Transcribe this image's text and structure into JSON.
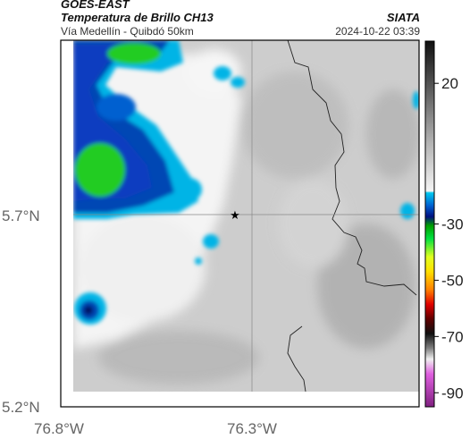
{
  "header": {
    "satellite": "GOES-EAST",
    "product": "Temperatura de Brillo CH13",
    "route": "Vía Medellín - Quibdó 50km",
    "agency": "SIATA",
    "timestamp": "2024-10-22 03:39"
  },
  "map": {
    "longitude_ticks": [
      "76.8°W",
      "76.3°W"
    ],
    "latitude_ticks": [
      "5.7°N",
      "5.2°N"
    ],
    "marker_icon": "star-icon",
    "colors": {
      "cloud_white": "#f4f4f4",
      "land_gray": "#c8c8c8",
      "cyan": "#00b4e6",
      "blue": "#0034a0",
      "green": "#22cc22",
      "navy": "#001060"
    }
  },
  "colorbar": {
    "tick_labels": [
      "20",
      "-30",
      "-50",
      "-70",
      "-90"
    ],
    "tick_values": [
      20,
      -30,
      -50,
      -70,
      -90
    ],
    "range": [
      -95,
      35
    ]
  }
}
